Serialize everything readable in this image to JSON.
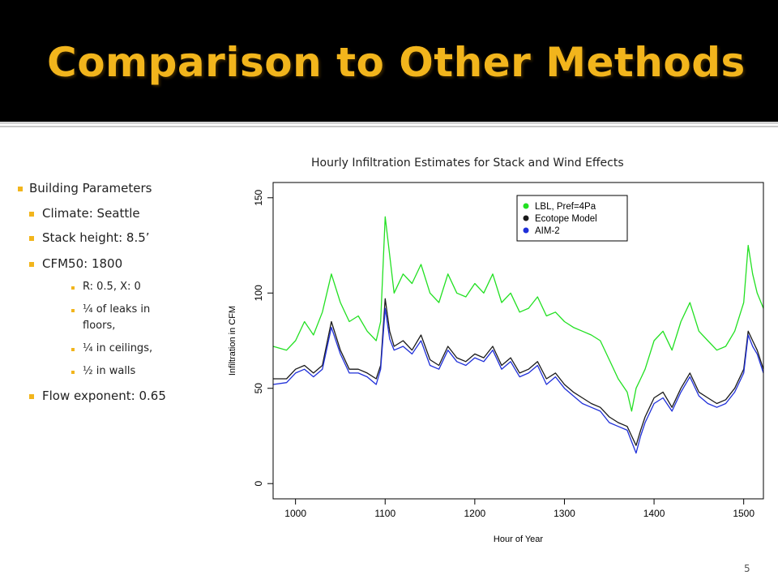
{
  "slide": {
    "title": "Comparison to Other Methods",
    "page_number": "5",
    "accent_color": "#f2b51c",
    "bullets": [
      {
        "level": 1,
        "text": "Building Parameters"
      },
      {
        "level": 2,
        "text": "Climate: Seattle"
      },
      {
        "level": 2,
        "text": "Stack height: 8.5’"
      },
      {
        "level": 2,
        "text": "CFM50: 1800"
      },
      {
        "level": 3,
        "text": "R: 0.5, X: 0"
      },
      {
        "level": 3,
        "text": "¼ of leaks in floors,"
      },
      {
        "level": 3,
        "text": "¼ in ceilings,"
      },
      {
        "level": 3,
        "text": "½ in walls"
      },
      {
        "level": 2,
        "text": "Flow exponent: 0.65"
      }
    ]
  },
  "chart_data": {
    "type": "line",
    "title": "Hourly Infiltration Estimates for Stack and Wind Effects",
    "xlabel": "Hour of Year",
    "ylabel": "Infiltration in CFM",
    "xlim": [
      975,
      1522
    ],
    "ylim": [
      -8,
      158
    ],
    "xticks": [
      1000,
      1100,
      1200,
      1300,
      1400,
      1500
    ],
    "yticks": [
      0,
      50,
      100,
      150
    ],
    "legend_position": "top-center",
    "grid": false,
    "x": [
      975,
      990,
      1000,
      1010,
      1020,
      1030,
      1040,
      1050,
      1060,
      1070,
      1080,
      1090,
      1095,
      1100,
      1105,
      1110,
      1120,
      1130,
      1140,
      1150,
      1160,
      1170,
      1180,
      1190,
      1200,
      1210,
      1220,
      1230,
      1240,
      1250,
      1260,
      1270,
      1280,
      1290,
      1300,
      1310,
      1320,
      1330,
      1340,
      1350,
      1360,
      1370,
      1375,
      1380,
      1385,
      1390,
      1400,
      1410,
      1420,
      1430,
      1440,
      1450,
      1460,
      1470,
      1480,
      1490,
      1500,
      1505,
      1510,
      1515,
      1522
    ],
    "series": [
      {
        "name": "LBL, Pref=4Pa",
        "color": "#22e022",
        "values": [
          72,
          70,
          75,
          85,
          78,
          90,
          110,
          95,
          85,
          88,
          80,
          75,
          85,
          140,
          120,
          100,
          110,
          105,
          115,
          100,
          95,
          110,
          100,
          98,
          105,
          100,
          110,
          95,
          100,
          90,
          92,
          98,
          88,
          90,
          85,
          82,
          80,
          78,
          75,
          65,
          55,
          48,
          38,
          50,
          55,
          60,
          75,
          80,
          70,
          85,
          95,
          80,
          75,
          70,
          72,
          80,
          95,
          125,
          110,
          100,
          92
        ]
      },
      {
        "name": "Ecotope Model",
        "color": "#1a1a1a",
        "values": [
          55,
          55,
          60,
          62,
          58,
          62,
          85,
          70,
          60,
          60,
          58,
          55,
          62,
          97,
          80,
          72,
          75,
          70,
          78,
          65,
          62,
          72,
          66,
          64,
          68,
          66,
          72,
          62,
          66,
          58,
          60,
          64,
          55,
          58,
          52,
          48,
          45,
          42,
          40,
          35,
          32,
          30,
          25,
          20,
          28,
          35,
          45,
          48,
          40,
          50,
          58,
          48,
          45,
          42,
          44,
          50,
          60,
          80,
          75,
          70,
          60
        ]
      },
      {
        "name": "AIM-2",
        "color": "#1f2fd9",
        "values": [
          52,
          53,
          58,
          60,
          56,
          60,
          82,
          68,
          58,
          58,
          56,
          52,
          60,
          92,
          76,
          70,
          72,
          68,
          75,
          62,
          60,
          70,
          64,
          62,
          66,
          64,
          70,
          60,
          64,
          56,
          58,
          62,
          52,
          56,
          50,
          46,
          42,
          40,
          38,
          32,
          30,
          28,
          22,
          16,
          25,
          32,
          42,
          45,
          38,
          48,
          56,
          46,
          42,
          40,
          42,
          48,
          58,
          78,
          72,
          68,
          58
        ]
      }
    ]
  }
}
